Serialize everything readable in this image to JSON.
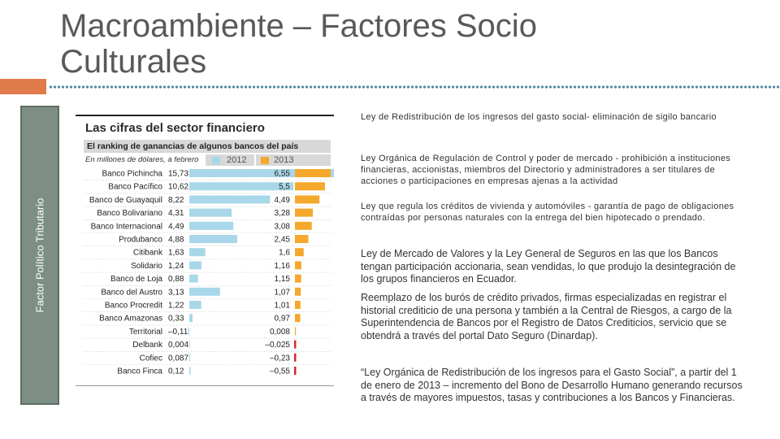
{
  "slide": {
    "title": "Macroambiente – Factores Socio Culturales",
    "side_label": "Factor Político Tributario"
  },
  "colors": {
    "accent_orange": "#e07a4a",
    "panel": "#7d8f84",
    "bar_2012": "#a9d7ea",
    "bar_2013": "#f5a82b",
    "bar_negative": "#d9262e"
  },
  "figure": {
    "title": "Las cifras del sector financiero",
    "subtitle": "El ranking de ganancias de algunos bancos del país",
    "units": "En millones de dólares, a febrero",
    "legend_2012": "2012",
    "legend_2013": "2013"
  },
  "chart_data": {
    "type": "bar",
    "title": "Las cifras del sector financiero",
    "subtitle": "El ranking de ganancias de algunos bancos del país",
    "ylabel": "En millones de dólares, a febrero",
    "categories": [
      "Banco Pichincha",
      "Banco Pacífico",
      "Banco de Guayaquil",
      "Banco Bolivariano",
      "Banco Internacional",
      "Produbanco",
      "Citibank",
      "Solidario",
      "Banco de Loja",
      "Banco del Austro",
      "Banco Procredit",
      "Banco Amazonas",
      "Territorial",
      "Delbank",
      "Cofiec",
      "Banco Finca"
    ],
    "series": [
      {
        "name": "2012",
        "values": [
          15.73,
          10.62,
          8.22,
          4.31,
          4.49,
          4.88,
          1.63,
          1.24,
          0.88,
          3.13,
          1.22,
          0.33,
          -0.11,
          0.004,
          0.087,
          0.12
        ],
        "labels": [
          "15,73",
          "10,62",
          "8,22",
          "4,31",
          "4,49",
          "4,88",
          "1,63",
          "1,24",
          "0,88",
          "3,13",
          "1,22",
          "0,33",
          "–0,11",
          "0,004",
          "0,087",
          "0,12"
        ]
      },
      {
        "name": "2013",
        "values": [
          6.55,
          5.5,
          4.49,
          3.28,
          3.08,
          2.45,
          1.6,
          1.16,
          1.15,
          1.07,
          1.01,
          0.97,
          0.008,
          -0.025,
          -0.23,
          -0.55
        ],
        "labels": [
          "6,55",
          "5,5",
          "4,49",
          "3,28",
          "3,08",
          "2,45",
          "1,6",
          "1,16",
          "1,15",
          "1,07",
          "1,01",
          "0,97",
          "0,008",
          "–0,025",
          "–0,23",
          "–0,55"
        ]
      }
    ]
  },
  "bullets": [
    "Ley de Redistribución de los ingresos del gasto social- eliminación de sigilo bancario",
    "Ley Orgánica de Regulación de Control y poder de mercado -  prohibición a instituciones financieras, accionistas, miembros del Directorio y administradores  a ser titulares de acciones o participaciones en empresas ajenas a la actividad",
    "Ley que regula los créditos de vivienda y automóviles  - garantía de pago de obligaciones contraídas por personas naturales con la entrega del bien hipotecado o prendado.",
    "Ley de Mercado de Valores y la Ley General de Seguros en las que los Bancos tengan participación accionaria, sean vendidas, lo que produjo la desintegración de los grupos financieros en Ecuador.",
    "Reemplazo de los burós de crédito privados, firmas especializadas en registrar el historial crediticio de una persona y también a la Central de Riesgos, a cargo de la Superintendencia de Bancos por el Registro de Datos Crediticios,  servicio que se obtendrá a través del portal Dato Seguro (Dinardap).",
    "“Ley Orgánica de Redistribución de los ingresos para el Gasto Social”, a partir del 1 de enero de 2013 – incremento del Bono de Desarrollo Humano generando recursos a través de mayores impuestos, tasas y contribuciones a los Bancos y Financieras."
  ]
}
